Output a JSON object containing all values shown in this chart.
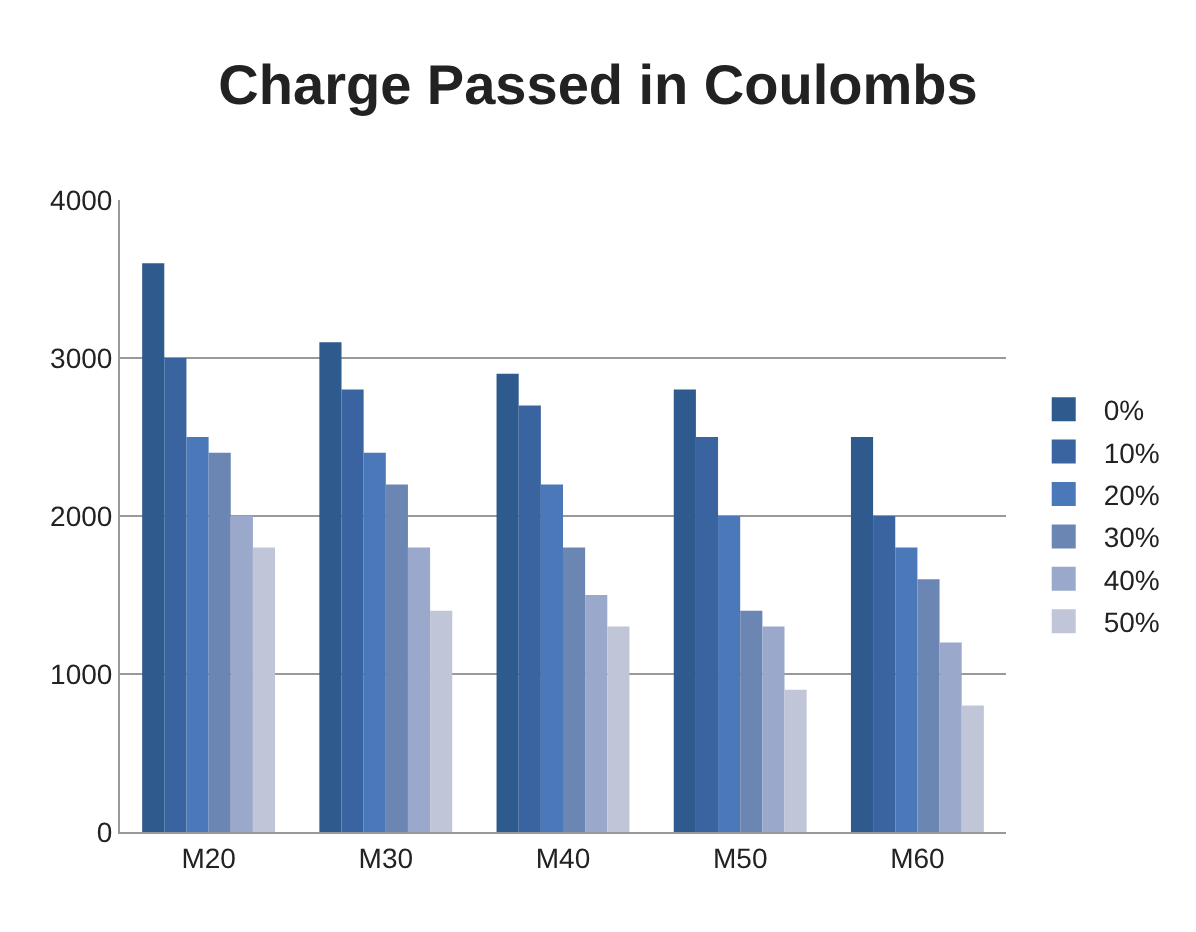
{
  "chart_data": {
    "type": "bar",
    "title": "Charge Passed in Coulombs",
    "categories": [
      "M20",
      "M30",
      "M40",
      "M50",
      "M60"
    ],
    "series": [
      {
        "name": "0%",
        "color": "#2e5a8e",
        "values": [
          3600,
          3100,
          2900,
          2800,
          2500
        ]
      },
      {
        "name": "10%",
        "color": "#3a64a0",
        "values": [
          3000,
          2800,
          2700,
          2500,
          2000
        ]
      },
      {
        "name": "20%",
        "color": "#4a78b8",
        "values": [
          2500,
          2400,
          2200,
          2000,
          1800
        ]
      },
      {
        "name": "30%",
        "color": "#6c86b4",
        "values": [
          2400,
          2200,
          1800,
          1400,
          1600
        ]
      },
      {
        "name": "40%",
        "color": "#9aa8cc",
        "values": [
          2000,
          1800,
          1500,
          1300,
          1200
        ]
      },
      {
        "name": "50%",
        "color": "#c0c6d8",
        "values": [
          1800,
          1400,
          1300,
          900,
          800
        ]
      }
    ],
    "ylim": [
      0,
      4000
    ],
    "yticks": [
      0,
      1000,
      2000,
      3000,
      4000
    ],
    "grid": "y",
    "legend": "right"
  }
}
